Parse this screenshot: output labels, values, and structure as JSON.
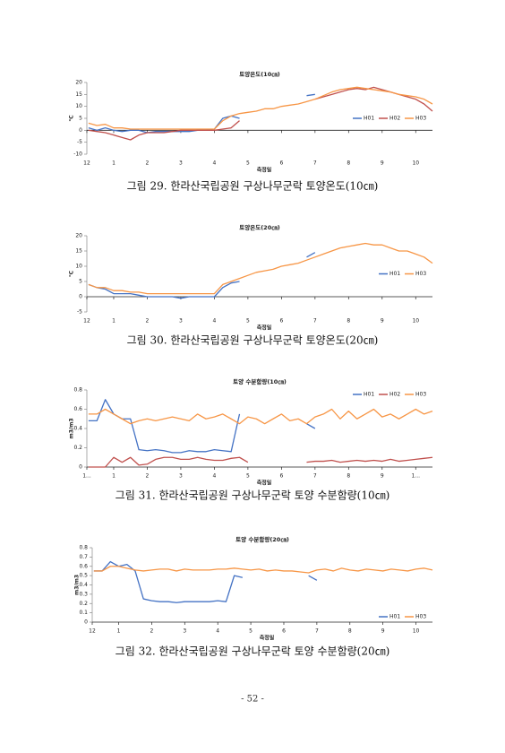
{
  "chart_data": [
    {
      "type": "line",
      "title": "토양온도(10㎝)",
      "x_label": "측정일",
      "y_label": "℃",
      "x": [
        0.25,
        0.5,
        0.75,
        1,
        1.25,
        1.5,
        1.75,
        2,
        2.25,
        2.5,
        2.75,
        3,
        3.25,
        3.5,
        3.75,
        4,
        4.25,
        4.5,
        4.75,
        5,
        5.25,
        5.5,
        5.75,
        6,
        6.25,
        6.5,
        6.75,
        7,
        7.25,
        7.5,
        7.75,
        8,
        8.25,
        8.5,
        8.75,
        9,
        9.25,
        9.5,
        9.75,
        10,
        10.25,
        10.5
      ],
      "xlim": [
        0.2,
        10.5
      ],
      "xticks": [
        {
          "value": 0.2,
          "label": "12"
        },
        1,
        2,
        3,
        4,
        5,
        6,
        7,
        8,
        9,
        10
      ],
      "ylim": [
        -10,
        20
      ],
      "yticks": [
        -10,
        -5,
        0,
        5,
        10,
        15,
        20
      ],
      "legend": "right",
      "series": [
        {
          "name": "H01",
          "color": "#4472c4",
          "values": [
            1,
            0,
            1,
            0,
            -0.5,
            0,
            0,
            -1,
            -0.5,
            -0.5,
            -0.5,
            -0.5,
            -0.5,
            0,
            0,
            0.5,
            5,
            6,
            5,
            null,
            null,
            null,
            null,
            null,
            null,
            null,
            14.5,
            15,
            null,
            null,
            null,
            null,
            null,
            null,
            null,
            null,
            null,
            null,
            null,
            null,
            null,
            null
          ]
        },
        {
          "name": "H02",
          "color": "#c0504d",
          "values": [
            0,
            -0.5,
            -1,
            -2,
            -3,
            -4,
            -2,
            -1,
            -1,
            -1,
            -0.5,
            0,
            0,
            0,
            0,
            0,
            0.5,
            1,
            4,
            null,
            null,
            null,
            null,
            null,
            null,
            null,
            null,
            13,
            14,
            15,
            16,
            17,
            17.5,
            17,
            18,
            17,
            16,
            15,
            14,
            13,
            11,
            8
          ]
        },
        {
          "name": "H03",
          "color": "#f79646",
          "values": [
            3,
            2,
            2.5,
            1,
            1,
            0.5,
            0.5,
            0.5,
            0.5,
            0.5,
            0.5,
            0.5,
            0.5,
            0.5,
            0.5,
            0.5,
            4,
            6,
            7,
            7.5,
            8,
            9,
            9,
            10,
            10.5,
            11,
            12,
            13,
            14.5,
            16,
            17,
            17.5,
            18,
            17.5,
            17,
            16.5,
            16,
            15,
            14.5,
            14,
            13,
            11
          ]
        }
      ]
    },
    {
      "type": "line",
      "title": "토양온도(20㎝)",
      "x_label": "측정일",
      "y_label": "℃",
      "x": [
        0.25,
        0.5,
        0.75,
        1,
        1.25,
        1.5,
        1.75,
        2,
        2.25,
        2.5,
        2.75,
        3,
        3.25,
        3.5,
        3.75,
        4,
        4.25,
        4.5,
        4.75,
        5,
        5.25,
        5.5,
        5.75,
        6,
        6.25,
        6.5,
        6.75,
        7,
        7.25,
        7.5,
        7.75,
        8,
        8.25,
        8.5,
        8.75,
        9,
        9.25,
        9.5,
        9.75,
        10,
        10.25,
        10.5
      ],
      "xlim": [
        0.2,
        10.5
      ],
      "xticks": [
        {
          "value": 0.2,
          "label": "12"
        },
        1,
        2,
        3,
        4,
        5,
        6,
        7,
        8,
        9,
        10
      ],
      "ylim": [
        -5,
        20
      ],
      "yticks": [
        -5,
        0,
        5,
        10,
        15,
        20
      ],
      "legend": "right",
      "series": [
        {
          "name": "H01",
          "color": "#4472c4",
          "values": [
            4,
            3,
            2.5,
            1,
            1,
            1,
            0.5,
            0,
            0,
            0,
            0,
            -0.5,
            0,
            0,
            0,
            0,
            3,
            4.5,
            5,
            null,
            null,
            null,
            null,
            null,
            null,
            null,
            13,
            14.5,
            null,
            null,
            null,
            null,
            null,
            null,
            null,
            null,
            null,
            null,
            null,
            null,
            null,
            null
          ]
        },
        {
          "name": "H03",
          "color": "#f79646",
          "values": [
            4,
            3,
            3,
            2,
            2,
            1.5,
            1.5,
            1,
            1,
            1,
            1,
            1,
            1,
            1,
            1,
            1,
            4,
            5,
            6,
            7,
            8,
            8.5,
            9,
            10,
            10.5,
            11,
            12,
            13,
            14,
            15,
            16,
            16.5,
            17,
            17.5,
            17,
            17,
            16,
            15,
            15,
            14,
            13,
            11
          ]
        }
      ]
    },
    {
      "type": "line",
      "title": "토양 수분함량(10㎝)",
      "x_label": "측정일",
      "y_label": "m3/m3",
      "x": [
        0.25,
        0.5,
        0.75,
        1,
        1.25,
        1.5,
        1.75,
        2,
        2.25,
        2.5,
        2.75,
        3,
        3.25,
        3.5,
        3.75,
        4,
        4.25,
        4.5,
        4.75,
        5,
        5.25,
        5.5,
        5.75,
        6,
        6.25,
        6.5,
        6.75,
        7,
        7.25,
        7.5,
        7.75,
        8,
        8.25,
        8.5,
        8.75,
        9,
        9.25,
        9.5,
        9.75,
        10,
        10.25,
        10.5
      ],
      "xlim": [
        0.2,
        10.5
      ],
      "xticks": [
        {
          "value": 0.2,
          "label": "1..."
        },
        1,
        2,
        3,
        4,
        5,
        6,
        7,
        8,
        9,
        {
          "value": 10,
          "label": "1..."
        }
      ],
      "ylim": [
        0,
        0.8
      ],
      "yticks": [
        0,
        0.2,
        0.4,
        0.6,
        0.8
      ],
      "legend": "top-right",
      "series": [
        {
          "name": "H01",
          "color": "#4472c4",
          "values": [
            0.48,
            0.48,
            0.7,
            0.55,
            0.5,
            0.5,
            0.18,
            0.17,
            0.18,
            0.17,
            0.15,
            0.15,
            0.17,
            0.16,
            0.16,
            0.18,
            0.17,
            0.16,
            0.55,
            null,
            null,
            null,
            null,
            null,
            null,
            null,
            0.45,
            0.4,
            null,
            null,
            null,
            null,
            null,
            null,
            null,
            null,
            null,
            null,
            null,
            null,
            null,
            null
          ]
        },
        {
          "name": "H02",
          "color": "#c0504d",
          "values": [
            0,
            0,
            0,
            0.1,
            0.05,
            0.1,
            0.02,
            0.03,
            0.08,
            0.1,
            0.1,
            0.08,
            0.08,
            0.1,
            0.08,
            0.07,
            0.07,
            0.09,
            0.1,
            0.05,
            null,
            null,
            null,
            null,
            null,
            null,
            0.05,
            0.06,
            0.06,
            0.07,
            0.05,
            0.06,
            0.07,
            0.06,
            0.07,
            0.06,
            0.08,
            0.06,
            0.07,
            0.08,
            0.09,
            0.1
          ]
        },
        {
          "name": "H03",
          "color": "#f79646",
          "values": [
            0.55,
            0.55,
            0.6,
            0.55,
            0.5,
            0.45,
            0.48,
            0.5,
            0.48,
            0.5,
            0.52,
            0.5,
            0.48,
            0.55,
            0.5,
            0.52,
            0.55,
            0.5,
            0.45,
            0.52,
            0.5,
            0.45,
            0.5,
            0.55,
            0.48,
            0.5,
            0.45,
            0.52,
            0.55,
            0.6,
            0.5,
            0.58,
            0.5,
            0.55,
            0.6,
            0.52,
            0.55,
            0.5,
            0.55,
            0.6,
            0.55,
            0.58
          ]
        }
      ]
    },
    {
      "type": "line",
      "title": "토양 수분함량(20㎝)",
      "x_label": "측정일",
      "y_label": "m3/m3",
      "x": [
        0.25,
        0.5,
        0.75,
        1,
        1.25,
        1.5,
        1.75,
        2,
        2.25,
        2.5,
        2.75,
        3,
        3.25,
        3.5,
        3.75,
        4,
        4.25,
        4.5,
        4.75,
        5,
        5.25,
        5.5,
        5.75,
        6,
        6.25,
        6.5,
        6.75,
        7,
        7.25,
        7.5,
        7.75,
        8,
        8.25,
        8.5,
        8.75,
        9,
        9.25,
        9.5,
        9.75,
        10,
        10.25,
        10.5
      ],
      "xlim": [
        0.2,
        10.5
      ],
      "xticks": [
        {
          "value": 0.2,
          "label": "12"
        },
        1,
        2,
        3,
        4,
        5,
        6,
        7,
        8,
        9,
        10
      ],
      "ylim": [
        0,
        0.8
      ],
      "yticks": [
        0,
        0.1,
        0.2,
        0.3,
        0.4,
        0.5,
        0.6,
        0.7,
        0.8
      ],
      "legend": "bottom-right",
      "series": [
        {
          "name": "H01",
          "color": "#4472c4",
          "values": [
            0.55,
            0.55,
            0.65,
            0.6,
            0.62,
            0.55,
            0.25,
            0.23,
            0.22,
            0.22,
            0.21,
            0.22,
            0.22,
            0.22,
            0.22,
            0.23,
            0.22,
            0.5,
            0.48,
            null,
            null,
            null,
            null,
            null,
            null,
            null,
            0.5,
            0.45,
            null,
            null,
            null,
            null,
            null,
            null,
            null,
            null,
            null,
            null,
            null,
            null,
            null,
            null
          ]
        },
        {
          "name": "H03",
          "color": "#f79646",
          "values": [
            0.55,
            0.55,
            0.6,
            0.6,
            0.58,
            0.56,
            0.55,
            0.56,
            0.57,
            0.57,
            0.55,
            0.57,
            0.56,
            0.56,
            0.56,
            0.57,
            0.57,
            0.58,
            0.57,
            0.56,
            0.57,
            0.55,
            0.56,
            0.55,
            0.55,
            0.54,
            0.53,
            0.56,
            0.57,
            0.55,
            0.58,
            0.56,
            0.55,
            0.57,
            0.56,
            0.55,
            0.57,
            0.56,
            0.55,
            0.57,
            0.58,
            0.56
          ]
        }
      ]
    }
  ],
  "captions": [
    "그림 29. 한라산국립공원 구상나무군락 토양온도(10㎝)",
    "그림 30. 한라산국립공원 구상나무군락 토양온도(20㎝)",
    "그림 31. 한라산국립공원 구상나무군락 토양 수분함량(10㎝)",
    "그림 32. 한라산국립공원 구상나무군락 토양 수분함량(20㎝)"
  ],
  "page_number": "- 52 -"
}
